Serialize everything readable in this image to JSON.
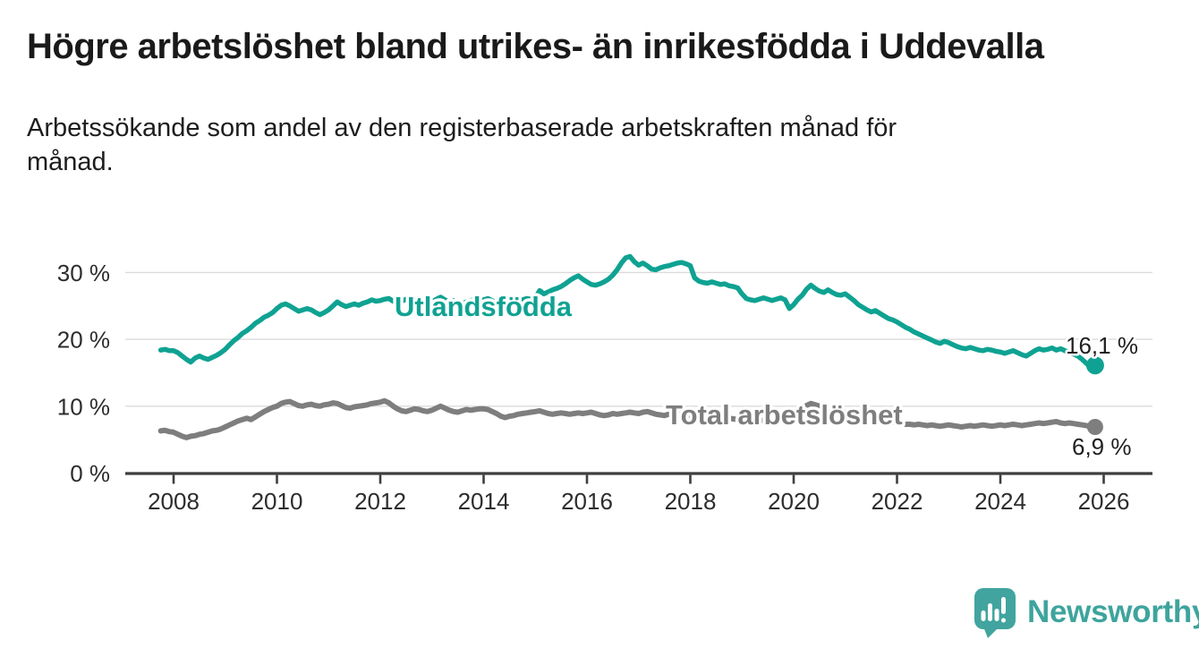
{
  "header": {
    "title": "Högre arbetslöshet bland utrikes- än inrikesfödda i Uddevalla",
    "subtitle_line1": "Arbetssökande som andel av den registerbaserade arbetskraften månad för",
    "subtitle_line2": "månad."
  },
  "footer": {
    "brand": "Newsworthy",
    "logo_icon": "speech-bubble-bar-chart-icon"
  },
  "colors": {
    "foreign_born_line": "#0FA292",
    "total_line": "#7E7E7E",
    "gridline": "#DBDBDB",
    "axis": "#3E3E3E",
    "title_text": "#1A1A1A",
    "brand_teal": "#3EA49D",
    "logo_bubble": "#41A49E"
  },
  "chart_data": {
    "type": "line",
    "title": "Högre arbetslöshet bland utrikes- än inrikesfödda i Uddevalla",
    "subtitle": "Arbetssökande som andel av den registerbaserade arbetskraften månad för månad.",
    "xlabel": "",
    "ylabel": "",
    "x_unit": "decimal_year_monthly",
    "x_start": 2007.75,
    "x_step": 0.0833333,
    "xlim": [
      2007.05,
      2026.95
    ],
    "ylim": [
      0,
      33
    ],
    "grid": "horizontal",
    "legend_position": "inline-labels",
    "x_ticks": [
      2008,
      2010,
      2012,
      2014,
      2016,
      2018,
      2020,
      2022,
      2024,
      2026
    ],
    "x_tick_labels": [
      "2008",
      "2010",
      "2012",
      "2014",
      "2016",
      "2018",
      "2020",
      "2022",
      "2024",
      "2026"
    ],
    "y_ticks": [
      0,
      10,
      20,
      30
    ],
    "y_tick_labels": [
      "0 %",
      "10 %",
      "20 %",
      "30 %"
    ],
    "series": [
      {
        "id": "utlandsfodda",
        "name": "Utlandsfödda",
        "color": "#0FA292",
        "end_label": "16,1 %",
        "end_value": 16.1,
        "values": [
          18.4,
          18.5,
          18.3,
          18.3,
          18.0,
          17.5,
          17.0,
          16.6,
          17.2,
          17.5,
          17.2,
          17.0,
          17.3,
          17.6,
          18.0,
          18.5,
          19.2,
          19.8,
          20.3,
          20.9,
          21.3,
          21.8,
          22.4,
          22.8,
          23.3,
          23.6,
          24.0,
          24.6,
          25.1,
          25.3,
          25.0,
          24.6,
          24.2,
          24.4,
          24.6,
          24.4,
          24.0,
          23.7,
          24.0,
          24.4,
          25.0,
          25.6,
          25.2,
          24.9,
          25.1,
          25.3,
          25.1,
          25.4,
          25.6,
          25.9,
          25.7,
          25.8,
          26.0,
          26.1,
          25.7,
          25.4,
          25.7,
          26.0,
          25.8,
          25.6,
          25.4,
          25.7,
          25.5,
          25.6,
          26.0,
          26.3,
          25.9,
          25.6,
          25.8,
          25.5,
          25.3,
          25.6,
          25.8,
          26.0,
          25.7,
          25.9,
          26.1,
          25.8,
          25.5,
          25.2,
          24.9,
          25.2,
          25.5,
          25.7,
          25.9,
          26.1,
          26.0,
          26.2,
          27.3,
          26.8,
          27.1,
          27.4,
          27.6,
          27.9,
          28.3,
          28.8,
          29.2,
          29.5,
          29.0,
          28.6,
          28.2,
          28.1,
          28.3,
          28.6,
          29.0,
          29.6,
          30.4,
          31.4,
          32.2,
          32.4,
          31.6,
          31.1,
          31.4,
          31.0,
          30.5,
          30.4,
          30.7,
          30.9,
          31.0,
          31.2,
          31.4,
          31.5,
          31.3,
          31.0,
          29.2,
          28.7,
          28.5,
          28.4,
          28.6,
          28.4,
          28.2,
          28.3,
          28.0,
          27.9,
          27.7,
          26.8,
          26.1,
          25.9,
          25.8,
          26.0,
          26.2,
          26.0,
          25.8,
          26.0,
          26.2,
          25.9,
          24.6,
          25.2,
          26.0,
          26.6,
          27.5,
          28.1,
          27.6,
          27.2,
          27.0,
          27.4,
          27.0,
          26.7,
          26.6,
          26.8,
          26.3,
          25.8,
          25.2,
          24.8,
          24.4,
          24.1,
          24.3,
          23.9,
          23.5,
          23.1,
          22.9,
          22.6,
          22.2,
          21.8,
          21.5,
          21.1,
          20.8,
          20.5,
          20.2,
          19.9,
          19.6,
          19.4,
          19.7,
          19.5,
          19.2,
          18.9,
          18.7,
          18.6,
          18.8,
          18.6,
          18.4,
          18.3,
          18.5,
          18.4,
          18.2,
          18.1,
          17.9,
          18.1,
          18.3,
          18.0,
          17.7,
          17.5,
          17.9,
          18.3,
          18.6,
          18.4,
          18.5,
          18.7,
          18.4,
          18.6,
          18.3,
          18.0,
          17.8,
          17.5,
          17.0,
          16.4,
          15.8,
          16.1
        ]
      },
      {
        "id": "total-arbetsloshet",
        "name": "Total arbetslöshet",
        "color": "#7E7E7E",
        "end_label": "6,9 %",
        "end_value": 6.9,
        "values": [
          6.3,
          6.4,
          6.2,
          6.1,
          5.8,
          5.5,
          5.3,
          5.5,
          5.6,
          5.8,
          5.9,
          6.1,
          6.3,
          6.4,
          6.6,
          6.9,
          7.2,
          7.5,
          7.8,
          8.0,
          8.2,
          8.0,
          8.4,
          8.8,
          9.2,
          9.5,
          9.8,
          10.0,
          10.4,
          10.6,
          10.7,
          10.4,
          10.1,
          10.0,
          10.2,
          10.3,
          10.1,
          10.0,
          10.2,
          10.3,
          10.5,
          10.4,
          10.1,
          9.8,
          9.7,
          9.9,
          10.0,
          10.1,
          10.2,
          10.4,
          10.5,
          10.6,
          10.8,
          10.5,
          10.0,
          9.6,
          9.3,
          9.2,
          9.4,
          9.6,
          9.5,
          9.3,
          9.2,
          9.4,
          9.7,
          10.0,
          9.7,
          9.4,
          9.2,
          9.1,
          9.3,
          9.5,
          9.4,
          9.5,
          9.6,
          9.6,
          9.5,
          9.2,
          8.9,
          8.5,
          8.3,
          8.5,
          8.6,
          8.8,
          8.9,
          9.0,
          9.1,
          9.2,
          9.3,
          9.1,
          8.9,
          8.8,
          8.9,
          9.0,
          8.9,
          8.8,
          8.9,
          9.0,
          8.9,
          9.0,
          9.1,
          8.9,
          8.7,
          8.6,
          8.7,
          8.9,
          8.8,
          8.9,
          9.0,
          9.1,
          9.0,
          8.9,
          9.1,
          9.2,
          9.0,
          8.8,
          8.7,
          8.6,
          8.8,
          8.9,
          8.8,
          8.7,
          8.6,
          8.6,
          8.7,
          8.5,
          8.4,
          8.3,
          8.2,
          8.3,
          8.4,
          8.3,
          8.2,
          8.1,
          8.0,
          8.0,
          8.1,
          8.0,
          7.9,
          7.8,
          7.9,
          8.0,
          8.1,
          8.2,
          8.3,
          8.4,
          8.5,
          8.7,
          9.1,
          9.6,
          10.1,
          10.4,
          10.2,
          10.0,
          9.9,
          9.8,
          9.6,
          9.4,
          9.2,
          9.1,
          9.0,
          8.8,
          8.6,
          8.4,
          8.2,
          8.1,
          8.0,
          7.9,
          7.8,
          7.7,
          7.6,
          7.5,
          7.4,
          7.3,
          7.3,
          7.2,
          7.3,
          7.2,
          7.1,
          7.2,
          7.1,
          7.0,
          7.1,
          7.2,
          7.1,
          7.0,
          6.9,
          7.0,
          7.1,
          7.0,
          7.1,
          7.2,
          7.1,
          7.0,
          7.1,
          7.2,
          7.1,
          7.2,
          7.3,
          7.2,
          7.1,
          7.2,
          7.3,
          7.4,
          7.5,
          7.4,
          7.5,
          7.6,
          7.7,
          7.5,
          7.4,
          7.5,
          7.4,
          7.3,
          7.2,
          7.1,
          7.0,
          6.9
        ]
      }
    ]
  }
}
